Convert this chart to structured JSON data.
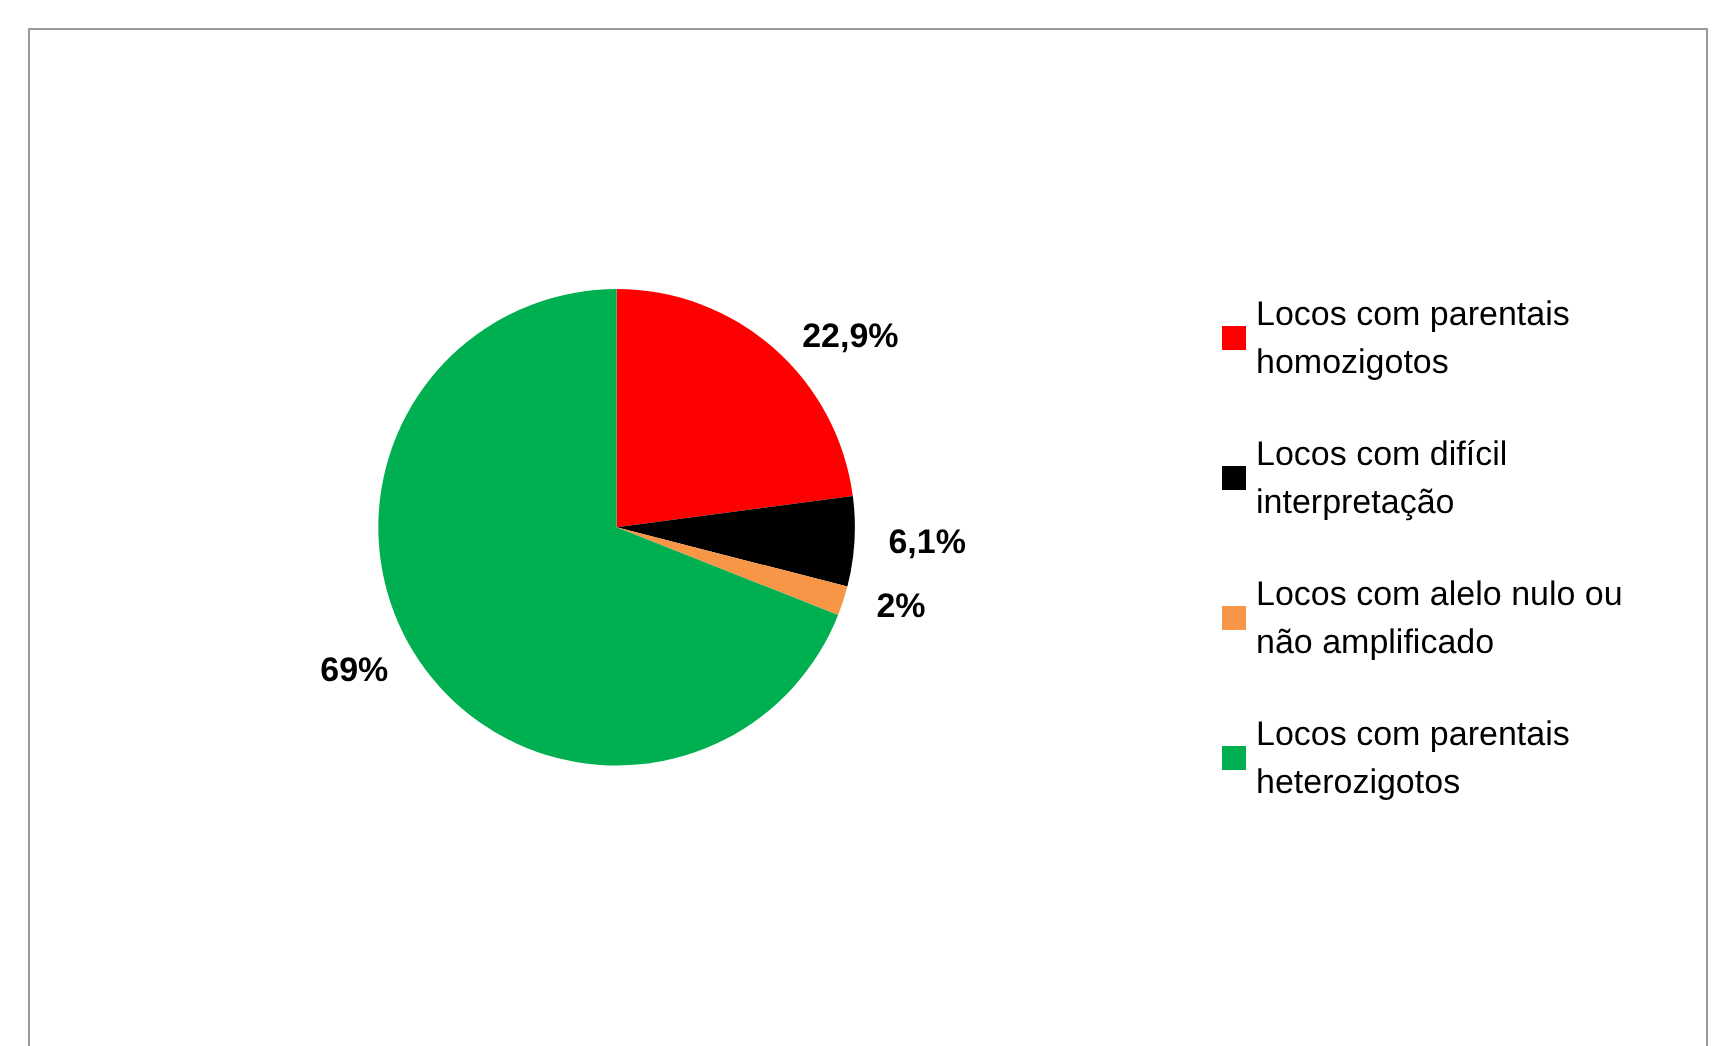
{
  "chart_data": {
    "type": "pie",
    "categories": [
      "Locos com parentais homozigotos",
      "Locos com difícil interpretação",
      "Locos com alelo nulo ou não amplificado",
      "Locos com parentais heterozigotos"
    ],
    "values": [
      22.9,
      6.1,
      2,
      69
    ],
    "colors": [
      "#ff0000",
      "#000000",
      "#f79646",
      "#00b050"
    ],
    "value_labels": [
      "22,9%",
      "6,1%",
      "2%",
      "69%"
    ],
    "legend": "right"
  }
}
